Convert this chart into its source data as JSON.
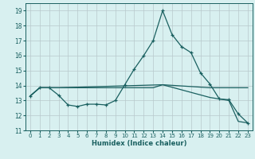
{
  "xlabel": "Humidex (Indice chaleur)",
  "xlim": [
    -0.5,
    23.5
  ],
  "ylim": [
    11,
    19.5
  ],
  "yticks": [
    11,
    12,
    13,
    14,
    15,
    16,
    17,
    18,
    19
  ],
  "xticks": [
    0,
    1,
    2,
    3,
    4,
    5,
    6,
    7,
    8,
    9,
    10,
    11,
    12,
    13,
    14,
    15,
    16,
    17,
    18,
    19,
    20,
    21,
    22,
    23
  ],
  "bg_color": "#d8f0f0",
  "grid_color": "#b8c8cc",
  "line_color": "#1a6060",
  "curve1_x": [
    0,
    1,
    2,
    3,
    4,
    5,
    6,
    7,
    8,
    9,
    10,
    11,
    12,
    13,
    14,
    15,
    16,
    17,
    18,
    19,
    20,
    21,
    22,
    23
  ],
  "curve1_y": [
    13.3,
    13.85,
    13.85,
    13.35,
    12.7,
    12.6,
    12.75,
    12.75,
    12.7,
    13.0,
    14.05,
    15.1,
    16.0,
    17.0,
    19.0,
    17.4,
    16.6,
    16.2,
    14.85,
    14.1,
    13.1,
    13.05,
    12.1,
    11.5
  ],
  "curve2_x": [
    0,
    1,
    2,
    3,
    4,
    5,
    6,
    7,
    8,
    9,
    10,
    11,
    12,
    13,
    14,
    19,
    20,
    21,
    22,
    23
  ],
  "curve2_y": [
    13.3,
    13.85,
    13.85,
    13.85,
    13.85,
    13.85,
    13.85,
    13.85,
    13.85,
    13.85,
    13.85,
    13.85,
    13.85,
    13.85,
    14.05,
    13.85,
    13.85,
    13.85,
    13.85,
    13.85
  ],
  "curve3_x": [
    0,
    1,
    2,
    3,
    14,
    19,
    21,
    22,
    23
  ],
  "curve3_y": [
    13.3,
    13.85,
    13.85,
    13.85,
    14.05,
    13.2,
    13.0,
    11.6,
    11.5
  ]
}
